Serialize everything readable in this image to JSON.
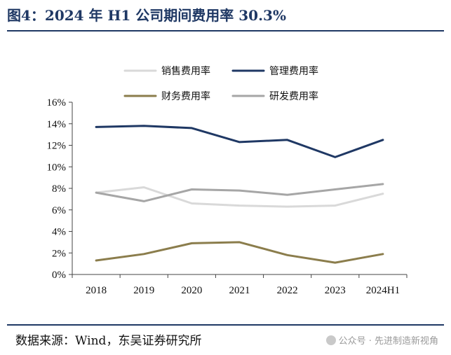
{
  "figure": {
    "title": "图4：2024 年 H1 公司期间费用率 30.3%",
    "source": "数据来源：Wind，东吴证券研究所",
    "watermark": "公众号 · 先进制造新视角"
  },
  "chart_data": {
    "type": "line",
    "x": [
      "2018",
      "2019",
      "2020",
      "2021",
      "2022",
      "2023",
      "2024H1"
    ],
    "ylim": [
      0,
      16
    ],
    "yticks": [
      "0%",
      "2%",
      "4%",
      "6%",
      "8%",
      "10%",
      "12%",
      "14%",
      "16%"
    ],
    "grid": false,
    "legend_position": "top",
    "series": [
      {
        "name": "销售费用率",
        "color": "#d9d9d9",
        "values": [
          7.6,
          8.1,
          6.6,
          6.4,
          6.3,
          6.4,
          7.5
        ]
      },
      {
        "name": "管理费用率",
        "color": "#1f3864",
        "values": [
          13.7,
          13.8,
          13.6,
          12.3,
          12.5,
          10.9,
          12.5
        ]
      },
      {
        "name": "财务费用率",
        "color": "#8b7d4c",
        "values": [
          1.3,
          1.9,
          2.9,
          3.0,
          1.8,
          1.1,
          1.9
        ]
      },
      {
        "name": "研发费用率",
        "color": "#a6a6a6",
        "values": [
          7.6,
          6.8,
          7.9,
          7.8,
          7.4,
          7.9,
          8.4
        ]
      }
    ]
  }
}
